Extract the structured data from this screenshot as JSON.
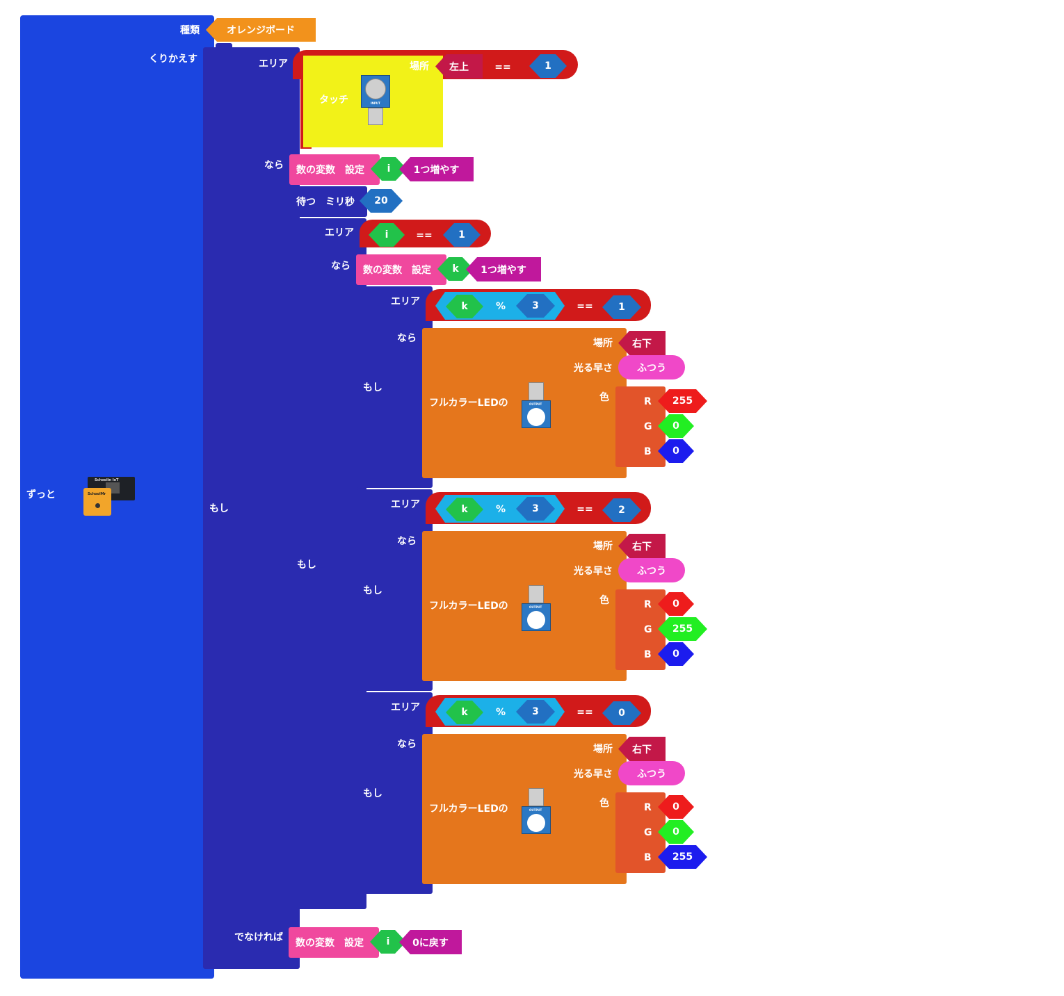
{
  "forever": {
    "label": "ずっと"
  },
  "board": {
    "type_label": "種類",
    "value": "オレンジボード",
    "board_top_text": "Schoolin IoT",
    "board_chip_text": "SchoolMr"
  },
  "repeat": {
    "label": "くりかえす"
  },
  "outer_if": {
    "label": "もし",
    "area_label": "エリア",
    "then_label": "なら",
    "else_label": "でなければ",
    "touch": {
      "label": "タッチ",
      "place_label": "場所",
      "place_value": "左上",
      "op": "==",
      "value": "1",
      "sensor_text": "INPUT"
    }
  },
  "set_i_inc": {
    "label": "数の変数　設定",
    "var": "i",
    "action": "1つ増やす"
  },
  "wait": {
    "label": "待つ　ミリ秒",
    "value": "20"
  },
  "if_i": {
    "label": "もし",
    "area_label": "エリア",
    "then_label": "なら",
    "var": "i",
    "op": "==",
    "value": "1"
  },
  "set_k_inc": {
    "label": "数の変数　設定",
    "var": "k",
    "action": "1つ増やす"
  },
  "led_common": {
    "label": "フルカラーLEDの",
    "place_label": "場所",
    "place_value": "右下",
    "speed_label": "光る早さ",
    "speed_value": "ふつう",
    "color_label": "色",
    "r": "R",
    "g": "G",
    "b": "B",
    "module_text": "OUTPUT"
  },
  "ifs_k": [
    {
      "label": "もし",
      "area_label": "エリア",
      "then_label": "なら",
      "var": "k",
      "mod": "%",
      "divisor": "3",
      "op": "==",
      "value": "1",
      "rgb": [
        "255",
        "0",
        "0"
      ]
    },
    {
      "label": "もし",
      "area_label": "エリア",
      "then_label": "なら",
      "var": "k",
      "mod": "%",
      "divisor": "3",
      "op": "==",
      "value": "2",
      "rgb": [
        "0",
        "255",
        "0"
      ]
    },
    {
      "label": "もし",
      "area_label": "エリア",
      "then_label": "なら",
      "var": "k",
      "mod": "%",
      "divisor": "3",
      "op": "==",
      "value": "0",
      "rgb": [
        "0",
        "0",
        "255"
      ]
    }
  ],
  "set_i_reset": {
    "label": "数の変数　設定",
    "var": "i",
    "action": "0に戻す"
  },
  "colors": {
    "forever": "#1b45e0",
    "if": "#2a2bb0",
    "cond": "#d11a1a",
    "led": "#e5761c",
    "variable": "#f0489e",
    "r": "#ee1c1c",
    "g": "#22ee22",
    "b": "#1c1cee"
  }
}
